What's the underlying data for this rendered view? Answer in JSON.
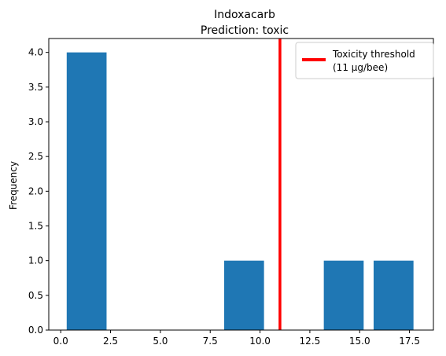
{
  "chart_data": {
    "type": "bar",
    "title": "Indoxacarb",
    "subtitle": "Prediction: toxic",
    "xlabel": "",
    "ylabel": "Frequency",
    "xlim": [
      -0.6,
      18.7
    ],
    "ylim": [
      0,
      4.2
    ],
    "xticks": [
      0.0,
      2.5,
      5.0,
      7.5,
      10.0,
      12.5,
      15.0,
      17.5
    ],
    "xtick_labels": [
      "0.0",
      "2.5",
      "5.0",
      "7.5",
      "10.0",
      "12.5",
      "15.0",
      "17.5"
    ],
    "yticks": [
      0.0,
      0.5,
      1.0,
      1.5,
      2.0,
      2.5,
      3.0,
      3.5,
      4.0
    ],
    "ytick_labels": [
      "0.0",
      "0.5",
      "1.0",
      "1.5",
      "2.0",
      "2.5",
      "3.0",
      "3.5",
      "4.0"
    ],
    "bars": [
      {
        "x0": 0.3,
        "x1": 2.3,
        "value": 4
      },
      {
        "x0": 8.2,
        "x1": 10.2,
        "value": 1
      },
      {
        "x0": 13.2,
        "x1": 15.2,
        "value": 1
      },
      {
        "x0": 15.7,
        "x1": 17.7,
        "value": 1
      }
    ],
    "bar_color": "#1f77b4",
    "threshold": {
      "x": 11,
      "color": "#ff0000",
      "label_line1": "Toxicity threshold",
      "label_line2": "(11 µg/bee)"
    },
    "grid": false,
    "legend_position": "upper right"
  }
}
